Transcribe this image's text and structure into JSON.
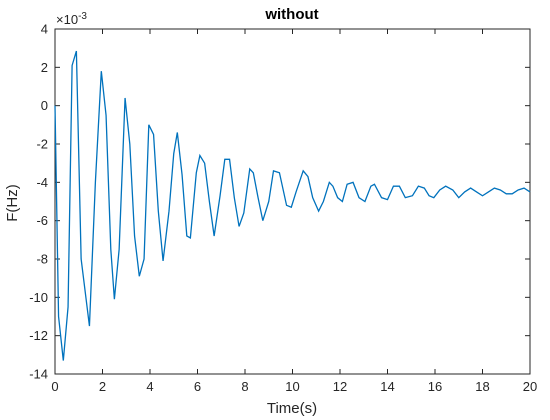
{
  "chart_data": {
    "type": "line",
    "title": "without",
    "xlabel": "Time(s)",
    "ylabel": "F(Hz)",
    "y_exponent_label": "×10",
    "y_exponent_power": "-3",
    "xlim": [
      0,
      20
    ],
    "ylim": [
      -14,
      4
    ],
    "x_ticks": [
      0,
      2,
      4,
      6,
      8,
      10,
      12,
      14,
      16,
      18,
      20
    ],
    "y_ticks": [
      -14,
      -12,
      -10,
      -8,
      -6,
      -4,
      -2,
      0,
      2,
      4
    ],
    "x_tick_labels": [
      "0",
      "2",
      "4",
      "6",
      "8",
      "10",
      "12",
      "14",
      "16",
      "18",
      "20"
    ],
    "y_tick_labels": [
      "-14",
      "-12",
      "-10",
      "-8",
      "-6",
      "-4",
      "-2",
      "0",
      "2",
      "4"
    ],
    "grid": false,
    "colors": {
      "line": "#0072BD",
      "axes": "#262626",
      "background": "#ffffff"
    },
    "series": [
      {
        "values": [
          [
            0.0,
            0.0
          ],
          [
            0.15,
            -11.0
          ],
          [
            0.35,
            -13.3
          ],
          [
            0.55,
            -10.5
          ],
          [
            0.72,
            2.1
          ],
          [
            0.9,
            2.85
          ],
          [
            1.1,
            -8.0
          ],
          [
            1.45,
            -11.5
          ],
          [
            1.7,
            -4.0
          ],
          [
            1.95,
            1.8
          ],
          [
            2.15,
            -0.5
          ],
          [
            2.35,
            -7.5
          ],
          [
            2.5,
            -10.1
          ],
          [
            2.7,
            -7.5
          ],
          [
            2.95,
            0.4
          ],
          [
            3.15,
            -2.0
          ],
          [
            3.35,
            -6.8
          ],
          [
            3.55,
            -8.9
          ],
          [
            3.75,
            -8.0
          ],
          [
            3.95,
            -1.0
          ],
          [
            4.15,
            -1.5
          ],
          [
            4.35,
            -5.5
          ],
          [
            4.55,
            -8.1
          ],
          [
            4.8,
            -5.5
          ],
          [
            5.0,
            -2.5
          ],
          [
            5.15,
            -1.4
          ],
          [
            5.35,
            -3.6
          ],
          [
            5.55,
            -6.8
          ],
          [
            5.7,
            -6.9
          ],
          [
            5.95,
            -3.5
          ],
          [
            6.1,
            -2.6
          ],
          [
            6.3,
            -3.0
          ],
          [
            6.5,
            -5.0
          ],
          [
            6.7,
            -6.8
          ],
          [
            6.95,
            -4.7
          ],
          [
            7.15,
            -2.8
          ],
          [
            7.35,
            -2.8
          ],
          [
            7.55,
            -4.8
          ],
          [
            7.75,
            -6.3
          ],
          [
            7.95,
            -5.6
          ],
          [
            8.2,
            -3.3
          ],
          [
            8.35,
            -3.5
          ],
          [
            8.55,
            -4.8
          ],
          [
            8.75,
            -6.0
          ],
          [
            9.0,
            -5.0
          ],
          [
            9.2,
            -3.4
          ],
          [
            9.45,
            -3.5
          ],
          [
            9.75,
            -5.2
          ],
          [
            9.95,
            -5.3
          ],
          [
            10.15,
            -4.5
          ],
          [
            10.45,
            -3.4
          ],
          [
            10.65,
            -3.7
          ],
          [
            10.85,
            -4.8
          ],
          [
            11.1,
            -5.5
          ],
          [
            11.3,
            -5.0
          ],
          [
            11.55,
            -4.0
          ],
          [
            11.7,
            -4.2
          ],
          [
            11.9,
            -4.8
          ],
          [
            12.1,
            -5.0
          ],
          [
            12.3,
            -4.1
          ],
          [
            12.55,
            -4.0
          ],
          [
            12.8,
            -4.8
          ],
          [
            13.05,
            -5.0
          ],
          [
            13.3,
            -4.2
          ],
          [
            13.45,
            -4.1
          ],
          [
            13.75,
            -4.8
          ],
          [
            14.0,
            -4.9
          ],
          [
            14.25,
            -4.2
          ],
          [
            14.5,
            -4.2
          ],
          [
            14.75,
            -4.8
          ],
          [
            15.05,
            -4.7
          ],
          [
            15.3,
            -4.2
          ],
          [
            15.55,
            -4.3
          ],
          [
            15.75,
            -4.7
          ],
          [
            15.95,
            -4.8
          ],
          [
            16.2,
            -4.4
          ],
          [
            16.45,
            -4.2
          ],
          [
            16.75,
            -4.4
          ],
          [
            17.0,
            -4.8
          ],
          [
            17.25,
            -4.5
          ],
          [
            17.5,
            -4.3
          ],
          [
            17.75,
            -4.5
          ],
          [
            18.0,
            -4.7
          ],
          [
            18.25,
            -4.5
          ],
          [
            18.5,
            -4.3
          ],
          [
            18.75,
            -4.4
          ],
          [
            19.0,
            -4.6
          ],
          [
            19.25,
            -4.6
          ],
          [
            19.5,
            -4.4
          ],
          [
            19.75,
            -4.3
          ],
          [
            20.0,
            -4.5
          ]
        ]
      }
    ]
  }
}
